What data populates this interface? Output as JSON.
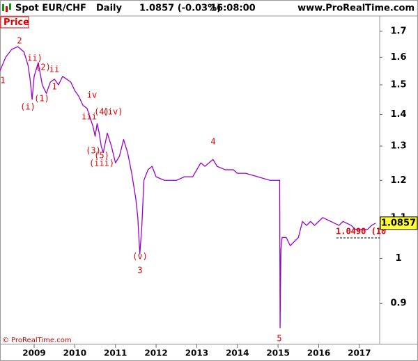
{
  "chart_data": {
    "type": "line",
    "header": {
      "instrument": "Spot EUR/CHF",
      "period": "Daily",
      "quote": "1.0857 (-0.03%)",
      "time": "16:08:00",
      "source": "www.ProRealTime.com"
    },
    "panel_label": "Price",
    "footer": "© ProRealTime.com",
    "log_scale": true,
    "grid": false,
    "xlim": [
      2008.16,
      2017.5
    ],
    "xticks": [
      2009,
      2010,
      2011,
      2012,
      2013,
      2014,
      2015,
      2016,
      2017
    ],
    "ylim": [
      0.818,
      1.759
    ],
    "yticks": [
      0.9,
      1,
      1.1,
      1.2,
      1.3,
      1.4,
      1.5,
      1.6,
      1.7
    ],
    "series": [
      {
        "color": "#9900cc",
        "x": [
          2008.16,
          2008.3,
          2008.45,
          2008.6,
          2008.75,
          2008.85,
          2008.9,
          2008.95,
          2009.0,
          2009.1,
          2009.2,
          2009.3,
          2009.4,
          2009.5,
          2009.6,
          2009.7,
          2009.8,
          2009.9,
          2010.0,
          2010.1,
          2010.2,
          2010.3,
          2010.4,
          2010.45,
          2010.5,
          2010.55,
          2010.6,
          2010.65,
          2010.7,
          2010.8,
          2010.9,
          2011.0,
          2011.1,
          2011.2,
          2011.3,
          2011.4,
          2011.5,
          2011.55,
          2011.6,
          2011.65,
          2011.7,
          2011.8,
          2011.9,
          2012.0,
          2012.2,
          2012.5,
          2012.7,
          2012.9,
          2013.0,
          2013.1,
          2013.2,
          2013.4,
          2013.5,
          2013.7,
          2013.9,
          2014.0,
          2014.2,
          2014.5,
          2014.8,
          2015.0,
          2015.04,
          2015.05,
          2015.07,
          2015.1,
          2015.2,
          2015.3,
          2015.4,
          2015.5,
          2015.6,
          2015.7,
          2015.8,
          2015.9,
          2016.0,
          2016.1,
          2016.3,
          2016.5,
          2016.6,
          2016.8,
          2016.9,
          2017.0,
          2017.2,
          2017.3,
          2017.4
        ],
        "values": [
          1.55,
          1.6,
          1.63,
          1.64,
          1.62,
          1.57,
          1.52,
          1.45,
          1.53,
          1.58,
          1.5,
          1.47,
          1.51,
          1.52,
          1.5,
          1.53,
          1.52,
          1.51,
          1.48,
          1.46,
          1.43,
          1.42,
          1.38,
          1.36,
          1.33,
          1.37,
          1.34,
          1.3,
          1.28,
          1.34,
          1.3,
          1.25,
          1.27,
          1.32,
          1.28,
          1.22,
          1.15,
          1.1,
          1.01,
          1.08,
          1.2,
          1.23,
          1.24,
          1.21,
          1.2,
          1.2,
          1.21,
          1.21,
          1.23,
          1.25,
          1.24,
          1.26,
          1.24,
          1.23,
          1.23,
          1.22,
          1.22,
          1.21,
          1.2,
          1.2,
          1.2,
          0.85,
          1.02,
          1.05,
          1.05,
          1.03,
          1.04,
          1.05,
          1.09,
          1.08,
          1.09,
          1.08,
          1.09,
          1.1,
          1.09,
          1.08,
          1.09,
          1.08,
          1.07,
          1.07,
          1.07,
          1.08,
          1.0857
        ]
      }
    ],
    "last_price": 1.0857,
    "level_line": {
      "value": 1.049,
      "label": "1.0490 (10"
    },
    "annotations": [
      "1",
      "2",
      "ii)",
      "(2)",
      "ii",
      "1",
      "(i)",
      "(1)",
      "iv",
      "iii",
      "(4)",
      "(iv)",
      "(3)",
      "(5)",
      "(iii)",
      "4",
      "(v)",
      "3",
      "5"
    ]
  }
}
